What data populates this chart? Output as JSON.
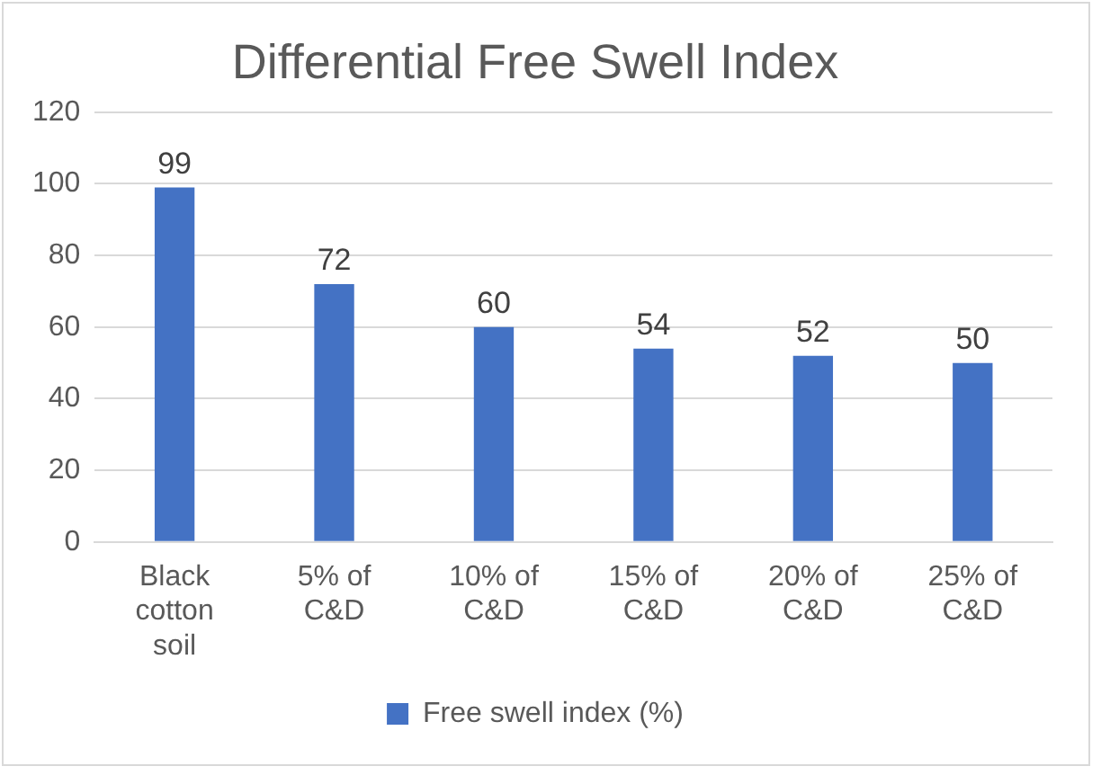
{
  "chart_data": {
    "type": "bar",
    "title": "Differential Free Swell Index",
    "categories": [
      "Black cotton soil",
      "5% of C&D",
      "10% of C&D",
      "15% of C&D",
      "20% of C&D",
      "25% of C&D"
    ],
    "series": [
      {
        "name": "Free swell index (%)",
        "color": "#4472c4",
        "values": [
          99,
          72,
          60,
          54,
          52,
          50
        ]
      }
    ],
    "ylim": [
      0,
      120
    ],
    "yticks": [
      0,
      20,
      40,
      60,
      80,
      100,
      120
    ],
    "grid": "y",
    "legend": "bottom",
    "data_labels": true
  }
}
